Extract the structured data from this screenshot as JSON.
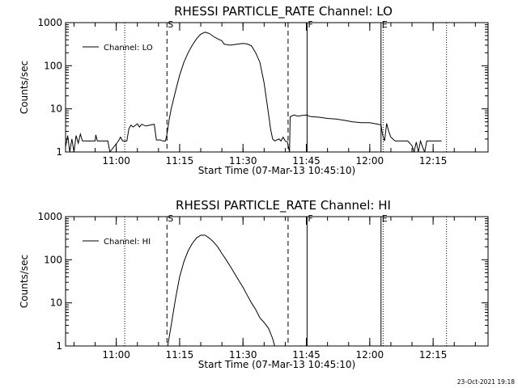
{
  "chart_data": [
    {
      "type": "line",
      "title": "RHESSI PARTICLE_RATE Channel: LO",
      "xlabel": "Start Time (07-Mar-13 10:45:10)",
      "ylabel": "Counts/sec",
      "yscale": "log",
      "ylim": [
        1,
        1000
      ],
      "xlim": [
        "10:48:00",
        "12:28:00"
      ],
      "x_ticks": [
        "11:00",
        "11:15",
        "11:30",
        "11:45",
        "12:00",
        "12:15"
      ],
      "y_ticks": [
        "1",
        "10",
        "100",
        "1000"
      ],
      "grid": false,
      "legend": {
        "position": "top-left",
        "entries": [
          "Channel: LO"
        ]
      },
      "markers": [
        {
          "label": "",
          "time": "11:02:00",
          "style": "dotted"
        },
        {
          "label": "S",
          "time": "11:12:00",
          "style": "dashed"
        },
        {
          "label": "",
          "time": "11:40:40",
          "style": "dashed"
        },
        {
          "label": "F",
          "time": "11:45:10",
          "style": "solid"
        },
        {
          "label": "E",
          "time": "12:02:40",
          "style": "solid"
        },
        {
          "label": "",
          "time": "12:03:10",
          "style": "dotted"
        },
        {
          "label": "",
          "time": "12:18:10",
          "style": "dotted"
        }
      ],
      "series": [
        {
          "name": "Channel: LO",
          "x": [
            "10:48:00",
            "10:48:30",
            "10:49:00",
            "10:49:30",
            "10:50:00",
            "10:50:30",
            "10:51:00",
            "10:51:30",
            "10:52:00",
            "10:55:00",
            "10:55:10",
            "10:55:30",
            "10:58:00",
            "10:58:30",
            "11:00:30",
            "11:01:00",
            "11:01:30",
            "11:02:30",
            "11:03:00",
            "11:03:30",
            "11:04:00",
            "11:05:00",
            "11:05:30",
            "11:06:00",
            "11:07:00",
            "11:08:00",
            "11:09:00",
            "11:09:30",
            "11:10:30",
            "11:11:00",
            "11:11:40",
            "11:12:00",
            "11:12:30",
            "11:13:00",
            "11:14:00",
            "11:15:00",
            "11:16:00",
            "11:17:00",
            "11:18:00",
            "11:19:00",
            "11:20:00",
            "11:21:00",
            "11:21:30",
            "11:22:00",
            "11:23:00",
            "11:24:00",
            "11:25:00",
            "11:25:30",
            "11:26:00",
            "11:27:00",
            "11:28:00",
            "11:29:00",
            "11:30:00",
            "11:31:00",
            "11:32:00",
            "11:33:00",
            "11:34:00",
            "11:35:00",
            "11:36:00",
            "11:36:30",
            "11:37:00",
            "11:37:30",
            "11:38:00",
            "11:38:30",
            "11:39:00",
            "11:39:30",
            "11:40:00",
            "11:40:30",
            "11:41:00",
            "11:41:10",
            "11:42:00",
            "11:43:00",
            "11:44:00",
            "11:45:00",
            "11:46:00",
            "11:48:00",
            "11:50:00",
            "11:52:00",
            "11:54:00",
            "11:56:00",
            "11:58:00",
            "12:00:00",
            "12:02:00",
            "12:02:40",
            "12:03:00",
            "12:03:30",
            "12:04:00",
            "12:04:30",
            "12:05:00",
            "12:06:00",
            "12:08:00",
            "12:09:00",
            "12:10:00",
            "12:10:30",
            "12:11:00",
            "12:11:30",
            "12:12:00",
            "12:12:30",
            "12:13:00",
            "12:13:30",
            "12:14:00",
            "12:15:00",
            "12:16:00",
            "12:17:00"
          ],
          "y": [
            1.3,
            2.4,
            1.0,
            2.0,
            1.0,
            2.4,
            1.6,
            2.6,
            1.8,
            1.8,
            2.5,
            1.8,
            1.8,
            1.0,
            1.8,
            2.2,
            1.8,
            1.8,
            3.5,
            4.2,
            3.8,
            4.5,
            3.8,
            4.4,
            4.0,
            4.2,
            4.4,
            1.9,
            1.9,
            1.8,
            1.8,
            2.6,
            5.5,
            10,
            25,
            60,
            120,
            200,
            300,
            420,
            540,
            600,
            580,
            560,
            480,
            420,
            380,
            320,
            310,
            300,
            310,
            320,
            330,
            320,
            290,
            200,
            120,
            40,
            8,
            3.5,
            2.0,
            1.8,
            1.9,
            2.0,
            1.8,
            2.2,
            1.8,
            1.7,
            1.0,
            6.5,
            7.2,
            6.8,
            7.0,
            7.2,
            6.6,
            6.4,
            6.0,
            5.8,
            5.4,
            5.0,
            4.8,
            4.8,
            4.4,
            4.2,
            2.6,
            1.8,
            4.6,
            3.0,
            2.2,
            1.8,
            1.8,
            1.8,
            1.4,
            1.0,
            1.7,
            1.0,
            1.8,
            1.3,
            1.0,
            1.8,
            1.8,
            1.8,
            1.8,
            1.8
          ]
        }
      ]
    },
    {
      "type": "line",
      "title": "RHESSI PARTICLE_RATE Channel: HI",
      "xlabel": "Start Time (07-Mar-13 10:45:10)",
      "ylabel": "Counts/sec",
      "yscale": "log",
      "ylim": [
        1,
        1000
      ],
      "xlim": [
        "10:48:00",
        "12:28:00"
      ],
      "x_ticks": [
        "11:00",
        "11:15",
        "11:30",
        "11:45",
        "12:00",
        "12:15"
      ],
      "y_ticks": [
        "1",
        "10",
        "100",
        "1000"
      ],
      "grid": false,
      "legend": {
        "position": "top-left",
        "entries": [
          "Channel: HI"
        ]
      },
      "markers": [
        {
          "label": "",
          "time": "11:02:00",
          "style": "dotted"
        },
        {
          "label": "S",
          "time": "11:12:00",
          "style": "dashed"
        },
        {
          "label": "",
          "time": "11:40:40",
          "style": "dashed"
        },
        {
          "label": "F",
          "time": "11:45:10",
          "style": "solid"
        },
        {
          "label": "E",
          "time": "12:02:40",
          "style": "solid"
        },
        {
          "label": "",
          "time": "12:03:10",
          "style": "dotted"
        },
        {
          "label": "",
          "time": "12:18:10",
          "style": "dotted"
        }
      ],
      "series": [
        {
          "name": "Channel: HI",
          "x": [
            "11:12:10",
            "11:13:00",
            "11:14:00",
            "11:15:00",
            "11:16:00",
            "11:17:00",
            "11:18:00",
            "11:19:00",
            "11:20:00",
            "11:21:00",
            "11:22:00",
            "11:23:00",
            "11:24:00",
            "11:25:00",
            "11:26:00",
            "11:27:00",
            "11:28:00",
            "11:29:00",
            "11:30:00",
            "11:31:00",
            "11:32:00",
            "11:33:00",
            "11:34:00",
            "11:35:00",
            "11:36:00",
            "11:37:00",
            "11:37:30"
          ],
          "y": [
            1.0,
            3.0,
            12,
            40,
            90,
            160,
            240,
            320,
            370,
            370,
            320,
            260,
            200,
            140,
            100,
            70,
            48,
            33,
            23,
            15,
            10,
            7.0,
            4.5,
            3.5,
            2.6,
            1.5,
            1.0
          ]
        }
      ]
    }
  ],
  "footer": {
    "timestamp": "23-Oct-2021 19:18"
  }
}
